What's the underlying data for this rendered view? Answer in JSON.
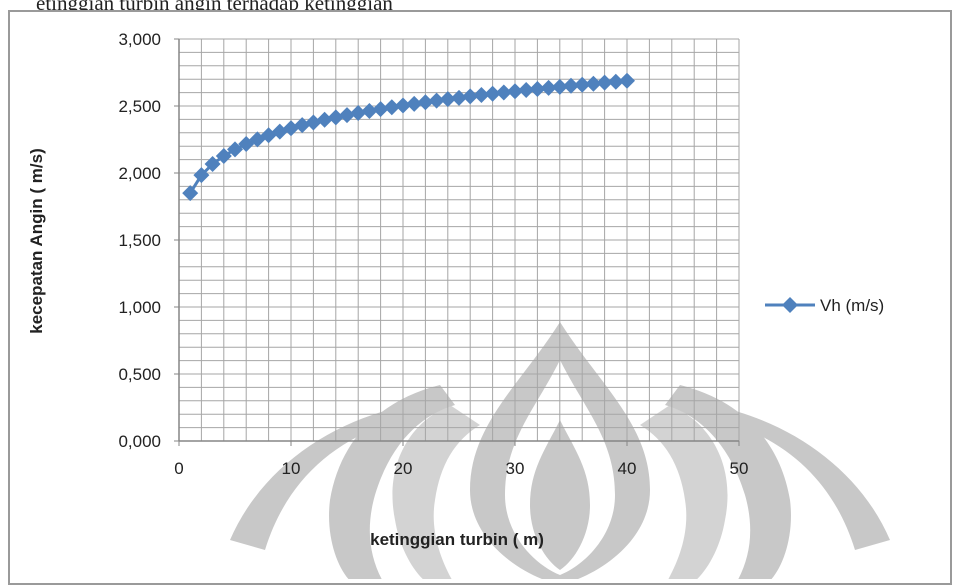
{
  "caption_fragment": "etinggian turbin angin terhadap ketinggian",
  "chart_data": {
    "type": "scatter-line",
    "xlabel": "ketinggian turbin ( m)",
    "ylabel": "kecepatan Angin ( m/s)",
    "xlim": [
      0,
      50
    ],
    "ylim": [
      0,
      3
    ],
    "x_ticks": [
      0,
      10,
      20,
      30,
      40,
      50
    ],
    "x_tick_labels": [
      "0",
      "10",
      "20",
      "30",
      "40",
      "50"
    ],
    "y_ticks": [
      0,
      0.5,
      1,
      1.5,
      2,
      2.5,
      3
    ],
    "y_tick_labels": [
      "0,000",
      "0,500",
      "1,000",
      "1,500",
      "2,000",
      "2,500",
      "3,000"
    ],
    "grid": true,
    "legend": "right",
    "series": [
      {
        "name": "Vh (m/s)",
        "color": "#4F81BD",
        "marker": "diamond",
        "x": [
          1,
          2,
          3,
          4,
          5,
          6,
          7,
          8,
          9,
          10,
          11,
          12,
          13,
          14,
          15,
          16,
          17,
          18,
          19,
          20,
          21,
          22,
          23,
          24,
          25,
          26,
          27,
          28,
          29,
          30,
          31,
          32,
          33,
          34,
          35,
          36,
          37,
          38,
          39,
          40
        ],
        "values": [
          1.85,
          1.984,
          2.067,
          2.127,
          2.176,
          2.216,
          2.251,
          2.282,
          2.309,
          2.334,
          2.357,
          2.377,
          2.397,
          2.415,
          2.432,
          2.448,
          2.463,
          2.477,
          2.491,
          2.504,
          2.516,
          2.528,
          2.54,
          2.551,
          2.561,
          2.572,
          2.582,
          2.591,
          2.601,
          2.61,
          2.619,
          2.627,
          2.635,
          2.643,
          2.651,
          2.659,
          2.666,
          2.674,
          2.681,
          2.688
        ]
      }
    ]
  },
  "colors": {
    "frame": "#9a9a9a",
    "grid": "#a6a6a6",
    "axis": "#868686",
    "text": "#222222",
    "watermark": "#c8c8c8"
  }
}
